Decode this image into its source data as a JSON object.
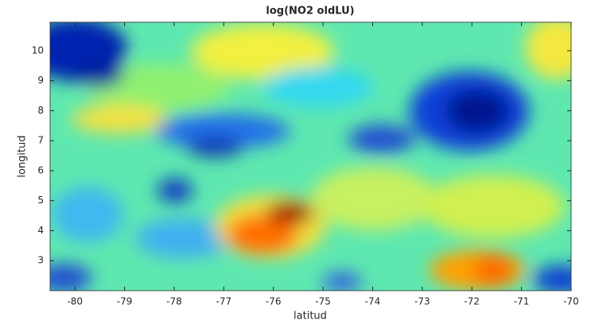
{
  "chart_data": {
    "type": "heatmap",
    "title": "log(NO2 oldLU)",
    "x_label": "latitud",
    "y_label": "longitud",
    "xlim": [
      -80.5,
      -70
    ],
    "xticks": [
      -80,
      -79,
      -78,
      -77,
      -76,
      -75,
      -74,
      -73,
      -72,
      -71,
      -70
    ],
    "ylim": [
      2,
      10.95
    ],
    "yticks": [
      3,
      4,
      5,
      6,
      7,
      8,
      9,
      10
    ],
    "colormap": "jet"
  }
}
